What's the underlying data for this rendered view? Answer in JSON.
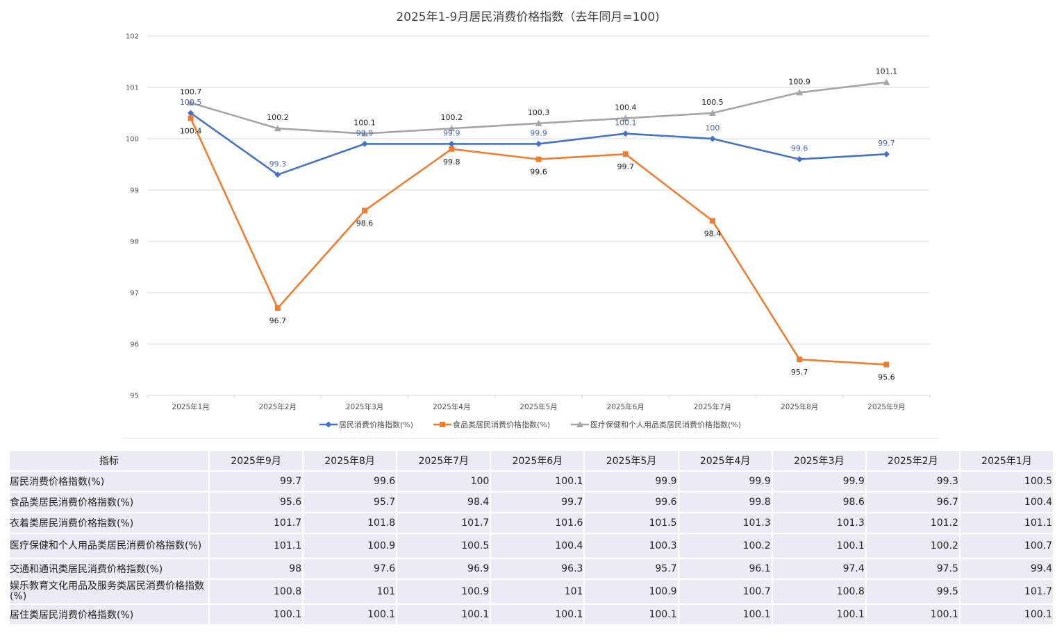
{
  "chart_data": {
    "type": "line",
    "title": "2025年1-9月居民消费价格指数（去年同月=100)",
    "categories": [
      "2025年1月",
      "2025年2月",
      "2025年3月",
      "2025年4月",
      "2025年5月",
      "2025年6月",
      "2025年7月",
      "2025年8月",
      "2025年9月"
    ],
    "ylim": [
      95,
      102
    ],
    "yticks": [
      95,
      96,
      97,
      98,
      99,
      100,
      101,
      102
    ],
    "grid": true,
    "legend_position": "bottom",
    "series": [
      {
        "name": "居民消费价格指数(%)",
        "color": "#4472c4",
        "marker": "diamond",
        "values": [
          100.5,
          99.3,
          99.9,
          99.9,
          99.9,
          100.1,
          100,
          99.6,
          99.7
        ],
        "labels": [
          "100.5",
          "99.3",
          "99.9",
          "99.9",
          "99.9",
          "100.1",
          "100",
          "99.6",
          "99.7"
        ]
      },
      {
        "name": "食品类居民消费价格指数(%)",
        "color": "#ed7d31",
        "marker": "square",
        "values": [
          100.4,
          96.7,
          98.6,
          99.8,
          99.6,
          99.7,
          98.4,
          95.7,
          95.6
        ],
        "labels": [
          "100.4",
          "96.7",
          "98.6",
          "99.8",
          "99.6",
          "99.7",
          "98.4",
          "95.7",
          "95.6"
        ]
      },
      {
        "name": "医疗保健和个人用品类居民消费价格指数(%)",
        "color": "#a5a5a5",
        "marker": "triangle",
        "values": [
          100.7,
          100.2,
          100.1,
          100.2,
          100.3,
          100.4,
          100.5,
          100.9,
          101.1
        ],
        "labels": [
          "100.7",
          "100.2",
          "100.1",
          "100.2",
          "100.3",
          "100.4",
          "100.5",
          "100.9",
          "101.1"
        ]
      }
    ]
  },
  "table": {
    "header": [
      "指标",
      "2025年9月",
      "2025年8月",
      "2025年7月",
      "2025年6月",
      "2025年5月",
      "2025年4月",
      "2025年3月",
      "2025年2月",
      "2025年1月"
    ],
    "rows": [
      [
        "居民消费价格指数(%)",
        "99.7",
        "99.6",
        "100",
        "100.1",
        "99.9",
        "99.9",
        "99.9",
        "99.3",
        "100.5"
      ],
      [
        "食品类居民消费价格指数(%)",
        "95.6",
        "95.7",
        "98.4",
        "99.7",
        "99.6",
        "99.8",
        "98.6",
        "96.7",
        "100.4"
      ],
      [
        "衣着类居民消费价格指数(%)",
        "101.7",
        "101.8",
        "101.7",
        "101.6",
        "101.5",
        "101.3",
        "101.3",
        "101.2",
        "101.1"
      ],
      [
        "医疗保健和个人用品类居民消费价格指数(%)",
        "101.1",
        "100.9",
        "100.5",
        "100.4",
        "100.3",
        "100.2",
        "100.1",
        "100.2",
        "100.7"
      ],
      [
        "交通和通讯类居民消费价格指数(%)",
        "98",
        "97.6",
        "96.9",
        "96.3",
        "95.7",
        "96.1",
        "97.4",
        "97.5",
        "99.4"
      ],
      [
        "娱乐教育文化用品及服务类居民消费价格指数(%)",
        "100.8",
        "101",
        "100.9",
        "101",
        "100.9",
        "100.7",
        "100.8",
        "99.5",
        "101.7"
      ],
      [
        "居住类居民消费价格指数(%)",
        "100.1",
        "100.1",
        "100.1",
        "100.1",
        "100.1",
        "100.1",
        "100.1",
        "100.1",
        "100.1"
      ]
    ]
  }
}
